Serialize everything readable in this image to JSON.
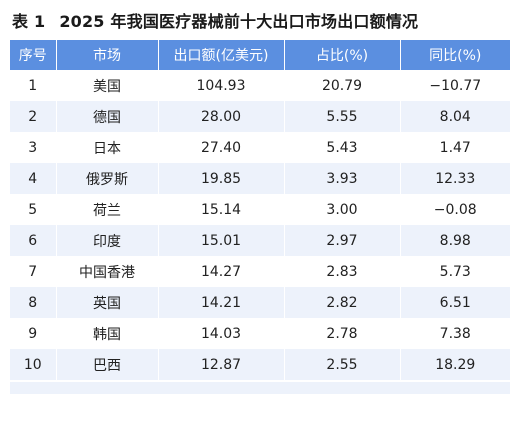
{
  "title": {
    "number": "表 1",
    "text": "2025 年我国医疗器械前十大出口市场出口额情况"
  },
  "table": {
    "headers": [
      "序号",
      "市场",
      "出口额(亿美元)",
      "占比(%)",
      "同比(%)"
    ],
    "rows": [
      [
        "1",
        "美国",
        "104.93",
        "20.79",
        "−10.77"
      ],
      [
        "2",
        "德国",
        "28.00",
        "5.55",
        "8.04"
      ],
      [
        "3",
        "日本",
        "27.40",
        "5.43",
        "1.47"
      ],
      [
        "4",
        "俄罗斯",
        "19.85",
        "3.93",
        "12.33"
      ],
      [
        "5",
        "荷兰",
        "15.14",
        "3.00",
        "−0.08"
      ],
      [
        "6",
        "印度",
        "15.01",
        "2.97",
        "8.98"
      ],
      [
        "7",
        "中国香港",
        "14.27",
        "2.83",
        "5.73"
      ],
      [
        "8",
        "英国",
        "14.21",
        "2.82",
        "6.51"
      ],
      [
        "9",
        "韩国",
        "14.03",
        "2.78",
        "7.38"
      ],
      [
        "10",
        "巴西",
        "12.87",
        "2.55",
        "18.29"
      ]
    ]
  },
  "colors": {
    "header_bg": "#5b8fe0",
    "header_text": "#ffffff",
    "stripe": "#edf2fb"
  }
}
